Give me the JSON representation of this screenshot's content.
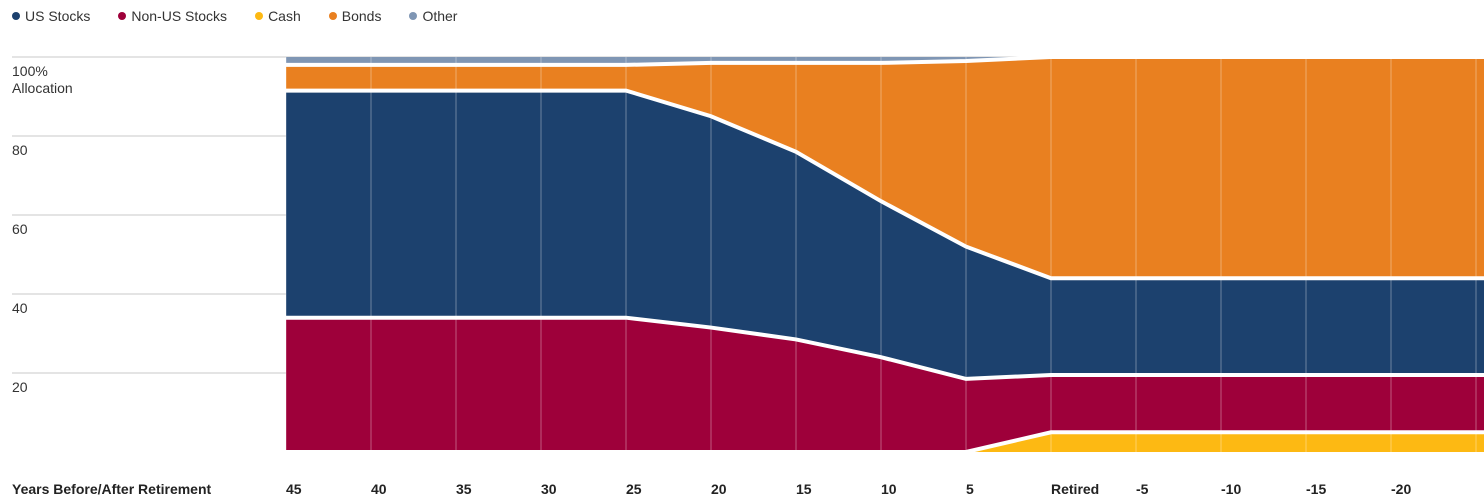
{
  "chart_data": {
    "type": "area",
    "stacked": true,
    "xlabel": "Years Before/After Retirement",
    "categories": [
      "45",
      "40",
      "35",
      "30",
      "25",
      "20",
      "15",
      "10",
      "5",
      "Retired",
      "-5",
      "-10",
      "-15",
      "-20"
    ],
    "y_ticks": [
      {
        "value": 100,
        "label": "100%",
        "sublabel": "Allocation"
      },
      {
        "value": 80,
        "label": "80"
      },
      {
        "value": 60,
        "label": "60"
      },
      {
        "value": 40,
        "label": "40"
      },
      {
        "value": 20,
        "label": "20"
      }
    ],
    "ylim": [
      0,
      100
    ],
    "grid": true,
    "legend_position": "top-left",
    "series": [
      {
        "name": "Cash",
        "color": "#FDB913",
        "values": [
          0,
          0,
          0,
          0,
          0,
          0,
          0,
          0,
          0,
          5,
          5,
          5,
          5,
          5
        ]
      },
      {
        "name": "Non-US Stocks",
        "color": "#9E003A",
        "values": [
          34,
          34,
          34,
          34,
          34,
          31.5,
          28.5,
          24,
          18.5,
          14.5,
          14.5,
          14.5,
          14.5,
          14.5
        ]
      },
      {
        "name": "US Stocks",
        "color": "#1C416E",
        "values": [
          57.5,
          57.5,
          57.5,
          57.5,
          57.5,
          53.5,
          47.5,
          39.5,
          33.5,
          24.5,
          24.5,
          24.5,
          24.5,
          24.5
        ]
      },
      {
        "name": "Bonds",
        "color": "#E98020",
        "values": [
          6.5,
          6.5,
          6.5,
          6.5,
          6.5,
          13.5,
          22.5,
          35,
          47,
          56,
          56,
          56,
          56,
          56
        ]
      },
      {
        "name": "Other",
        "color": "#7F96B4",
        "values": [
          2,
          2,
          2,
          2,
          2,
          1.5,
          1.5,
          1.5,
          1,
          0,
          0,
          0,
          0,
          0
        ]
      }
    ],
    "legend_order": [
      "US Stocks",
      "Non-US Stocks",
      "Cash",
      "Bonds",
      "Other"
    ]
  }
}
